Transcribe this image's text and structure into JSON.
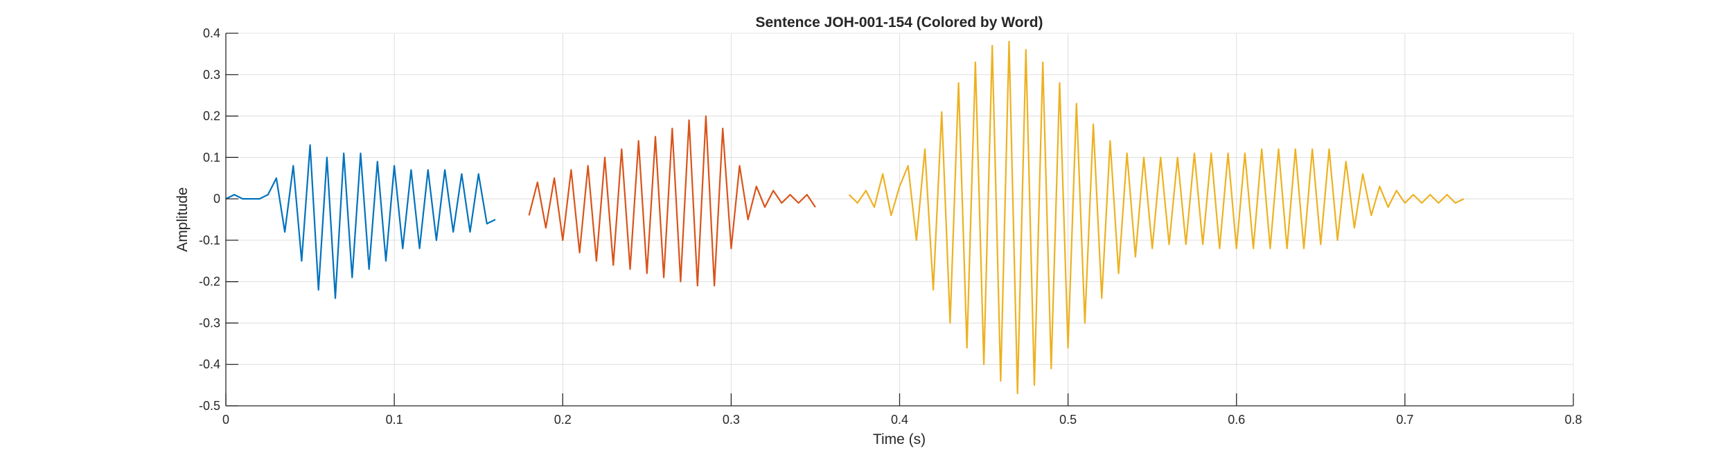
{
  "chart_data": {
    "type": "line",
    "title": "Sentence JOH-001-154 (Colored by Word)",
    "xlabel": "Time (s)",
    "ylabel": "Amplitude",
    "xlim": [
      0,
      0.8
    ],
    "ylim": [
      -0.5,
      0.4
    ],
    "xticks": [
      0,
      0.1,
      0.2,
      0.3,
      0.4,
      0.5,
      0.6,
      0.7,
      0.8
    ],
    "xtick_labels": [
      "0",
      "0.1",
      "0.2",
      "0.3",
      "0.4",
      "0.5",
      "0.6",
      "0.7",
      "0.8"
    ],
    "yticks": [
      -0.5,
      -0.4,
      -0.3,
      -0.2,
      -0.1,
      0,
      0.1,
      0.2,
      0.3,
      0.4
    ],
    "ytick_labels": [
      "-0.5",
      "-0.4",
      "-0.3",
      "-0.2",
      "-0.1",
      "0",
      "0.1",
      "0.2",
      "0.3",
      "0.4"
    ],
    "grid": true,
    "series": [
      {
        "color": "#0072BD",
        "x": [
          0.0,
          0.005,
          0.01,
          0.015,
          0.02,
          0.025,
          0.03,
          0.035,
          0.04,
          0.045,
          0.05,
          0.055,
          0.06,
          0.065,
          0.07,
          0.075,
          0.08,
          0.085,
          0.09,
          0.095,
          0.1,
          0.105,
          0.11,
          0.115,
          0.12,
          0.125,
          0.13,
          0.135,
          0.14,
          0.145,
          0.15,
          0.155,
          0.16
        ],
        "values": [
          0.0,
          0.01,
          0.0,
          0.0,
          0.0,
          0.01,
          0.05,
          -0.08,
          0.08,
          -0.15,
          0.13,
          -0.22,
          0.1,
          -0.24,
          0.11,
          -0.19,
          0.11,
          -0.17,
          0.09,
          -0.15,
          0.08,
          -0.12,
          0.07,
          -0.12,
          0.07,
          -0.1,
          0.07,
          -0.08,
          0.06,
          -0.08,
          0.06,
          -0.06,
          -0.05
        ]
      },
      {
        "color": "#D95319",
        "x": [
          0.18,
          0.185,
          0.19,
          0.195,
          0.2,
          0.205,
          0.21,
          0.215,
          0.22,
          0.225,
          0.23,
          0.235,
          0.24,
          0.245,
          0.25,
          0.255,
          0.26,
          0.265,
          0.27,
          0.275,
          0.28,
          0.285,
          0.29,
          0.295,
          0.3,
          0.305,
          0.31,
          0.315,
          0.32,
          0.325,
          0.33,
          0.335,
          0.34,
          0.345,
          0.35
        ],
        "values": [
          -0.04,
          0.04,
          -0.07,
          0.05,
          -0.1,
          0.07,
          -0.13,
          0.08,
          -0.15,
          0.1,
          -0.16,
          0.12,
          -0.17,
          0.14,
          -0.18,
          0.15,
          -0.19,
          0.17,
          -0.2,
          0.19,
          -0.21,
          0.2,
          -0.21,
          0.17,
          -0.12,
          0.08,
          -0.05,
          0.03,
          -0.02,
          0.02,
          -0.01,
          0.01,
          -0.01,
          0.01,
          -0.02
        ]
      },
      {
        "color": "#EDB120",
        "x": [
          0.37,
          0.375,
          0.38,
          0.385,
          0.39,
          0.395,
          0.4,
          0.405,
          0.41,
          0.415,
          0.42,
          0.425,
          0.43,
          0.435,
          0.44,
          0.445,
          0.45,
          0.455,
          0.46,
          0.465,
          0.47,
          0.475,
          0.48,
          0.485,
          0.49,
          0.495,
          0.5,
          0.505,
          0.51,
          0.515,
          0.52,
          0.525,
          0.53,
          0.535,
          0.54,
          0.545,
          0.55,
          0.555,
          0.56,
          0.565,
          0.57,
          0.575,
          0.58,
          0.585,
          0.59,
          0.595,
          0.6,
          0.605,
          0.61,
          0.615,
          0.62,
          0.625,
          0.63,
          0.635,
          0.64,
          0.645,
          0.65,
          0.655,
          0.66,
          0.665,
          0.67,
          0.675,
          0.68,
          0.685,
          0.69,
          0.695,
          0.7,
          0.705,
          0.71,
          0.715,
          0.72,
          0.725,
          0.73,
          0.735
        ],
        "values": [
          0.01,
          -0.01,
          0.02,
          -0.02,
          0.06,
          -0.04,
          0.03,
          0.08,
          -0.1,
          0.12,
          -0.22,
          0.21,
          -0.3,
          0.28,
          -0.36,
          0.33,
          -0.4,
          0.37,
          -0.44,
          0.38,
          -0.47,
          0.36,
          -0.45,
          0.33,
          -0.41,
          0.28,
          -0.36,
          0.23,
          -0.3,
          0.18,
          -0.24,
          0.14,
          -0.18,
          0.11,
          -0.14,
          0.1,
          -0.12,
          0.1,
          -0.11,
          0.1,
          -0.11,
          0.11,
          -0.11,
          0.11,
          -0.12,
          0.11,
          -0.12,
          0.11,
          -0.12,
          0.12,
          -0.12,
          0.12,
          -0.12,
          0.12,
          -0.12,
          0.12,
          -0.11,
          0.12,
          -0.1,
          0.09,
          -0.07,
          0.06,
          -0.04,
          0.03,
          -0.02,
          0.02,
          -0.01,
          0.01,
          -0.01,
          0.01,
          -0.01,
          0.01,
          -0.01,
          0.0
        ]
      }
    ]
  }
}
